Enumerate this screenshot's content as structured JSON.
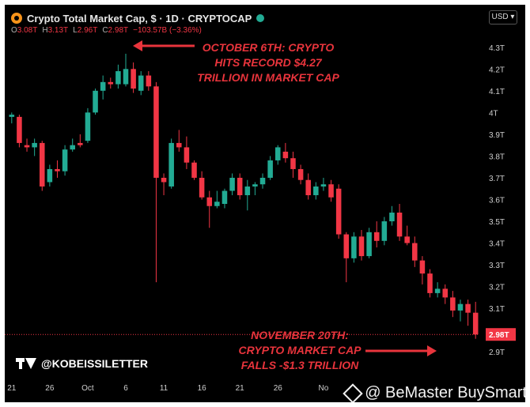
{
  "header": {
    "title": "Crypto Total Market Cap, $ · 1D · CRYPTOCAP",
    "ohlc": {
      "o_label": "O",
      "o": "3.08T",
      "h_label": "H",
      "h": "3.13T",
      "l_label": "L",
      "l": "2.96T",
      "c_label": "C",
      "c": "2.98T",
      "change": "−103.57B (−3.36%)"
    },
    "currency": "USD ▾"
  },
  "annotations": {
    "top": [
      "OCTOBER 6TH: CRYPTO",
      "HITS RECORD $4.27",
      "TRILLION IN MARKET CAP"
    ],
    "bottom": [
      "NOVEMBER 20TH:",
      "CRYPTO MARKET CAP",
      "FALLS -$1.3 TRILLION"
    ]
  },
  "watermark": "@KOBEISSILETTER",
  "brand": "@ BeMaster BuySmart",
  "price_label": "2.98T",
  "colors": {
    "up": "#22ab94",
    "down": "#f23645",
    "annotation": "#e8343c",
    "background": "#000000"
  },
  "chart_data": {
    "type": "candlestick",
    "unit": "trillion USD",
    "ylim": [
      2.85,
      4.35
    ],
    "y_ticks": [
      "4.3T",
      "4.2T",
      "4.1T",
      "4T",
      "3.9T",
      "3.8T",
      "3.7T",
      "3.6T",
      "3.5T",
      "3.4T",
      "3.3T",
      "3.2T",
      "3.1T",
      "2.98T",
      "2.9T"
    ],
    "y_tick_values": [
      4.3,
      4.2,
      4.1,
      4.0,
      3.9,
      3.8,
      3.7,
      3.6,
      3.5,
      3.4,
      3.3,
      3.2,
      3.1,
      2.98,
      2.9
    ],
    "x_ticks": [
      "21",
      "26",
      "Oct",
      "6",
      "11",
      "16",
      "21",
      "26",
      "No"
    ],
    "x_tick_index": [
      0,
      5,
      10,
      15,
      20,
      25,
      30,
      35,
      41
    ],
    "current_price": 2.98,
    "candles": [
      {
        "o": 3.98,
        "h": 4.0,
        "l": 3.95,
        "c": 3.99
      },
      {
        "o": 3.98,
        "h": 3.99,
        "l": 3.84,
        "c": 3.86
      },
      {
        "o": 3.85,
        "h": 3.88,
        "l": 3.82,
        "c": 3.84
      },
      {
        "o": 3.84,
        "h": 3.88,
        "l": 3.8,
        "c": 3.86
      },
      {
        "o": 3.86,
        "h": 3.87,
        "l": 3.64,
        "c": 3.66
      },
      {
        "o": 3.68,
        "h": 3.76,
        "l": 3.66,
        "c": 3.74
      },
      {
        "o": 3.74,
        "h": 3.78,
        "l": 3.7,
        "c": 3.73
      },
      {
        "o": 3.73,
        "h": 3.85,
        "l": 3.71,
        "c": 3.83
      },
      {
        "o": 3.83,
        "h": 3.88,
        "l": 3.82,
        "c": 3.85
      },
      {
        "o": 3.86,
        "h": 3.9,
        "l": 3.84,
        "c": 3.85
      },
      {
        "o": 3.87,
        "h": 4.02,
        "l": 3.86,
        "c": 4.0
      },
      {
        "o": 4.0,
        "h": 4.11,
        "l": 3.99,
        "c": 4.1
      },
      {
        "o": 4.1,
        "h": 4.17,
        "l": 4.06,
        "c": 4.14
      },
      {
        "o": 4.14,
        "h": 4.16,
        "l": 4.11,
        "c": 4.13
      },
      {
        "o": 4.13,
        "h": 4.22,
        "l": 4.11,
        "c": 4.19
      },
      {
        "o": 4.13,
        "h": 4.27,
        "l": 4.12,
        "c": 4.2
      },
      {
        "o": 4.2,
        "h": 4.23,
        "l": 4.09,
        "c": 4.11
      },
      {
        "o": 4.1,
        "h": 4.19,
        "l": 4.08,
        "c": 4.17
      },
      {
        "o": 4.17,
        "h": 4.19,
        "l": 4.1,
        "c": 4.12
      },
      {
        "o": 4.12,
        "h": 4.14,
        "l": 3.22,
        "c": 3.7
      },
      {
        "o": 3.7,
        "h": 3.72,
        "l": 3.62,
        "c": 3.68
      },
      {
        "o": 3.66,
        "h": 3.88,
        "l": 3.65,
        "c": 3.86
      },
      {
        "o": 3.86,
        "h": 3.92,
        "l": 3.82,
        "c": 3.84
      },
      {
        "o": 3.84,
        "h": 3.89,
        "l": 3.74,
        "c": 3.77
      },
      {
        "o": 3.77,
        "h": 3.78,
        "l": 3.69,
        "c": 3.7
      },
      {
        "o": 3.7,
        "h": 3.73,
        "l": 3.6,
        "c": 3.61
      },
      {
        "o": 3.61,
        "h": 3.64,
        "l": 3.47,
        "c": 3.57
      },
      {
        "o": 3.57,
        "h": 3.64,
        "l": 3.56,
        "c": 3.59
      },
      {
        "o": 3.58,
        "h": 3.65,
        "l": 3.56,
        "c": 3.64
      },
      {
        "o": 3.64,
        "h": 3.72,
        "l": 3.62,
        "c": 3.7
      },
      {
        "o": 3.7,
        "h": 3.72,
        "l": 3.6,
        "c": 3.62
      },
      {
        "o": 3.62,
        "h": 3.69,
        "l": 3.55,
        "c": 3.66
      },
      {
        "o": 3.66,
        "h": 3.68,
        "l": 3.62,
        "c": 3.67
      },
      {
        "o": 3.67,
        "h": 3.72,
        "l": 3.65,
        "c": 3.7
      },
      {
        "o": 3.7,
        "h": 3.8,
        "l": 3.69,
        "c": 3.78
      },
      {
        "o": 3.78,
        "h": 3.85,
        "l": 3.76,
        "c": 3.84
      },
      {
        "o": 3.82,
        "h": 3.86,
        "l": 3.77,
        "c": 3.79
      },
      {
        "o": 3.79,
        "h": 3.82,
        "l": 3.7,
        "c": 3.74
      },
      {
        "o": 3.74,
        "h": 3.76,
        "l": 3.67,
        "c": 3.69
      },
      {
        "o": 3.69,
        "h": 3.72,
        "l": 3.6,
        "c": 3.62
      },
      {
        "o": 3.62,
        "h": 3.68,
        "l": 3.6,
        "c": 3.66
      },
      {
        "o": 3.66,
        "h": 3.7,
        "l": 3.64,
        "c": 3.67
      },
      {
        "o": 3.67,
        "h": 3.69,
        "l": 3.59,
        "c": 3.61
      },
      {
        "o": 3.65,
        "h": 3.67,
        "l": 3.42,
        "c": 3.44
      },
      {
        "o": 3.44,
        "h": 3.45,
        "l": 3.22,
        "c": 3.33
      },
      {
        "o": 3.33,
        "h": 3.45,
        "l": 3.31,
        "c": 3.43
      },
      {
        "o": 3.43,
        "h": 3.46,
        "l": 3.32,
        "c": 3.34
      },
      {
        "o": 3.34,
        "h": 3.47,
        "l": 3.33,
        "c": 3.45
      },
      {
        "o": 3.45,
        "h": 3.5,
        "l": 3.38,
        "c": 3.41
      },
      {
        "o": 3.41,
        "h": 3.52,
        "l": 3.39,
        "c": 3.5
      },
      {
        "o": 3.5,
        "h": 3.57,
        "l": 3.48,
        "c": 3.54
      },
      {
        "o": 3.54,
        "h": 3.58,
        "l": 3.41,
        "c": 3.43
      },
      {
        "o": 3.43,
        "h": 3.48,
        "l": 3.39,
        "c": 3.4
      },
      {
        "o": 3.4,
        "h": 3.43,
        "l": 3.29,
        "c": 3.32
      },
      {
        "o": 3.32,
        "h": 3.34,
        "l": 3.21,
        "c": 3.26
      },
      {
        "o": 3.26,
        "h": 3.28,
        "l": 3.15,
        "c": 3.17
      },
      {
        "o": 3.17,
        "h": 3.22,
        "l": 3.15,
        "c": 3.19
      },
      {
        "o": 3.19,
        "h": 3.21,
        "l": 3.12,
        "c": 3.15
      },
      {
        "o": 3.15,
        "h": 3.18,
        "l": 3.06,
        "c": 3.09
      },
      {
        "o": 3.09,
        "h": 3.14,
        "l": 3.04,
        "c": 3.12
      },
      {
        "o": 3.12,
        "h": 3.14,
        "l": 3.02,
        "c": 3.08
      },
      {
        "o": 3.08,
        "h": 3.13,
        "l": 2.96,
        "c": 2.98
      }
    ]
  }
}
